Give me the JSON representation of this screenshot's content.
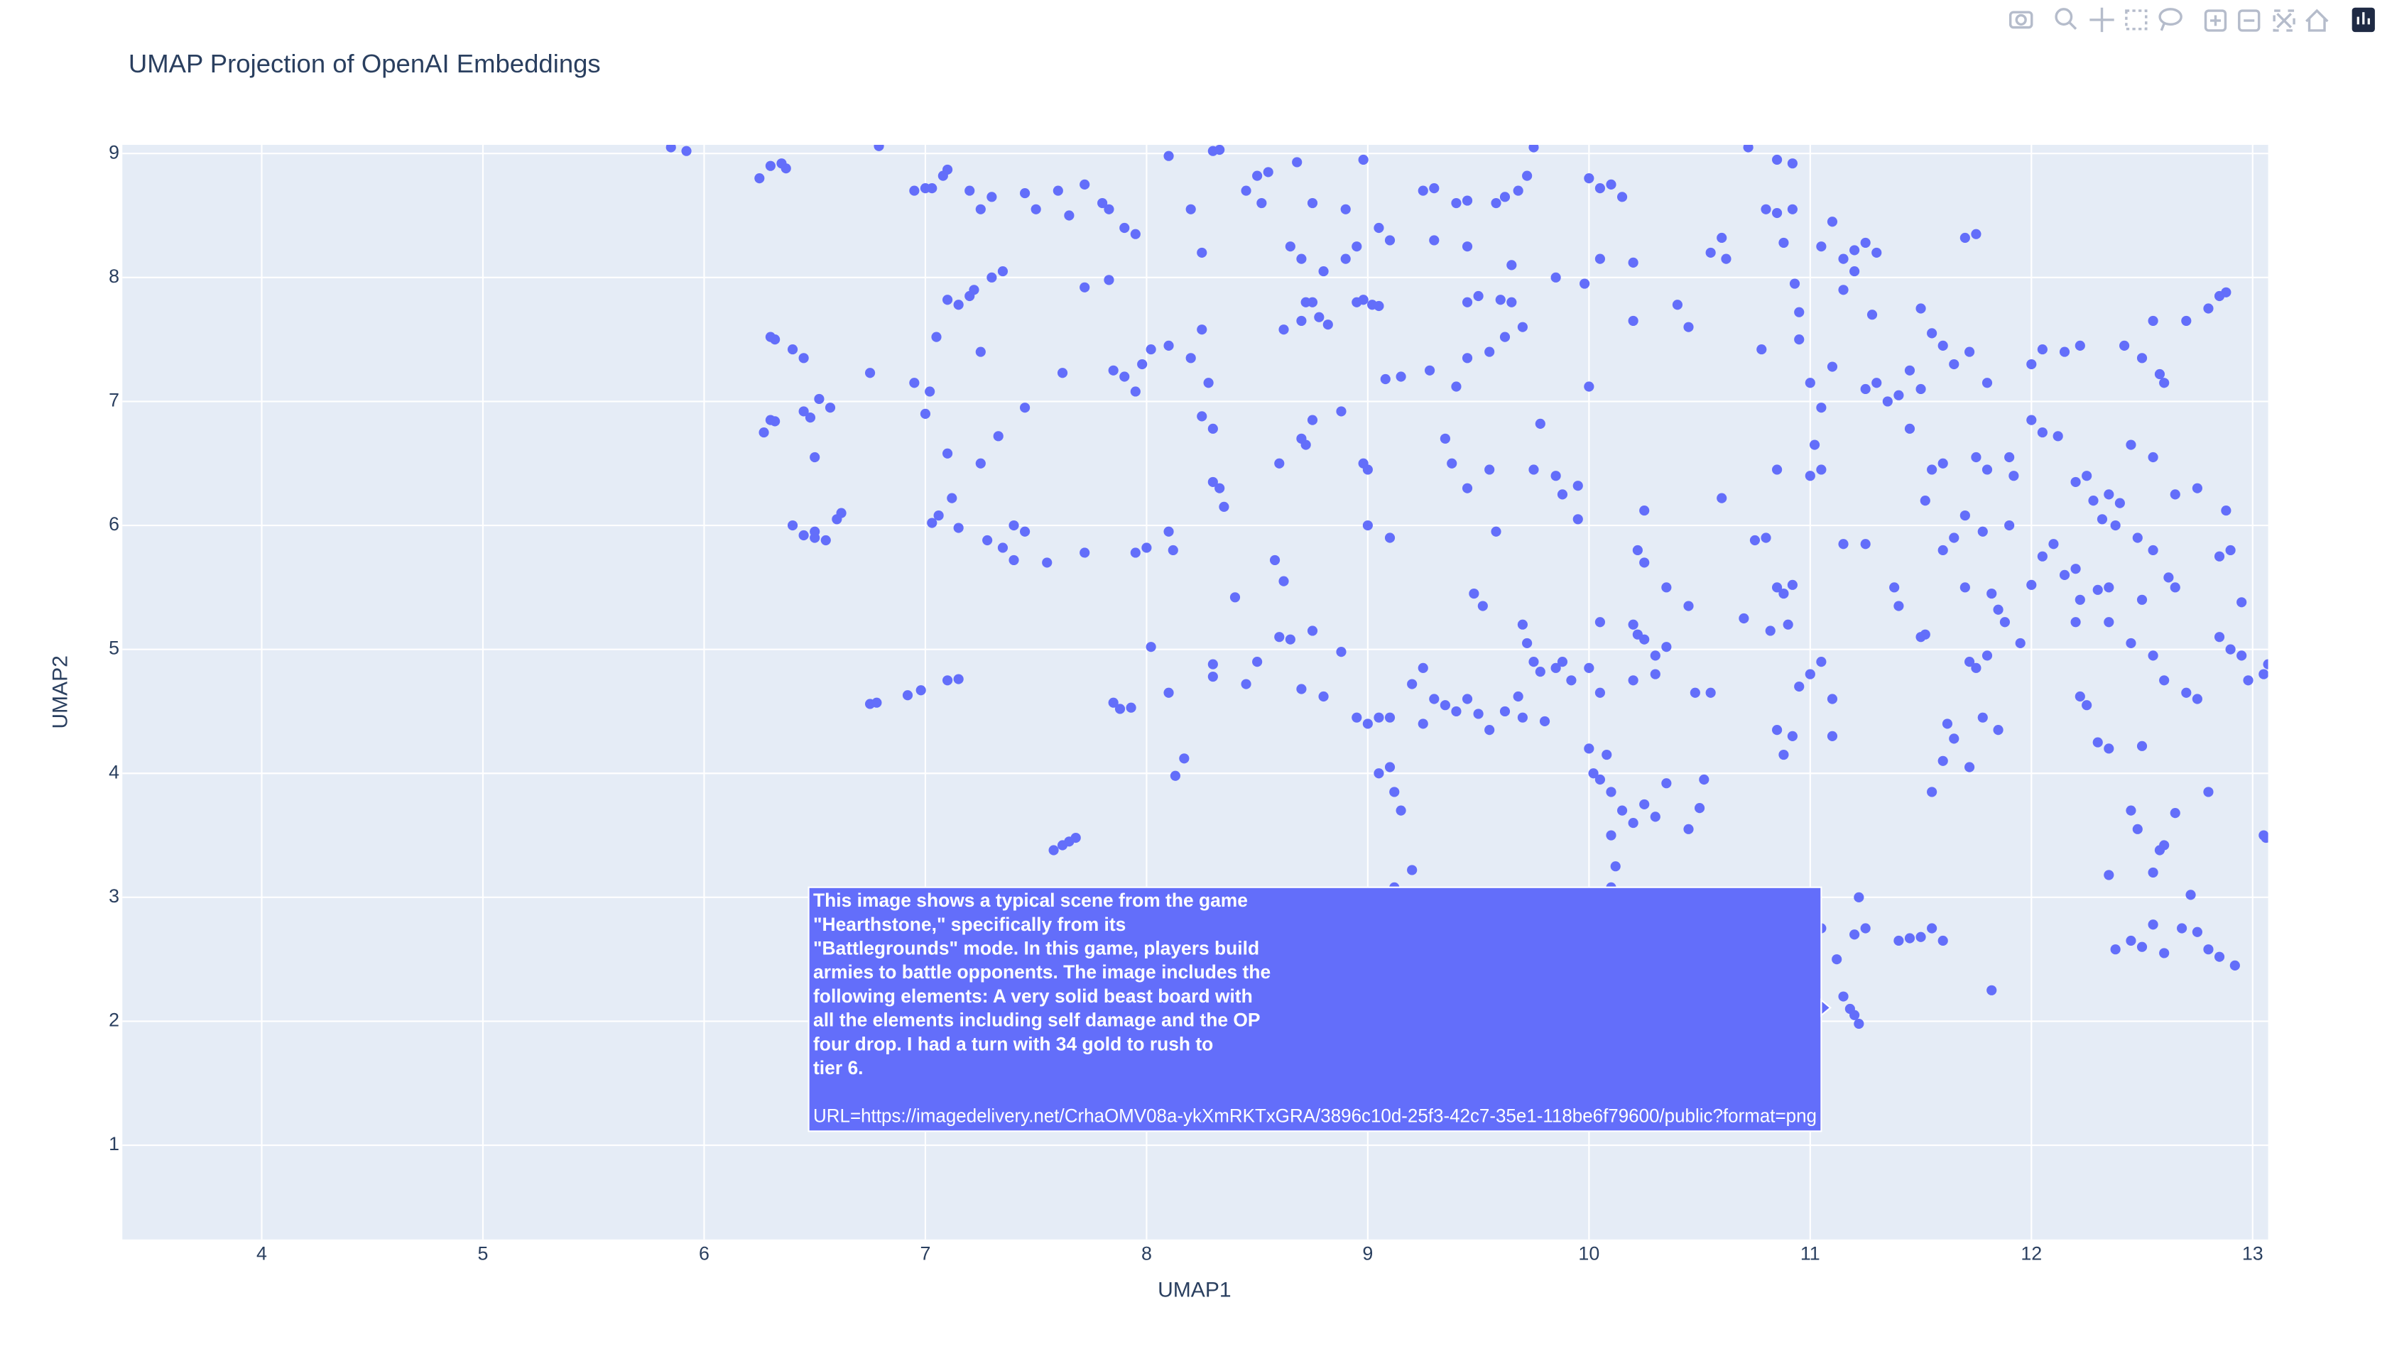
{
  "chart_data": {
    "type": "scatter",
    "title": "UMAP Projection of OpenAI Embeddings",
    "x_label": "UMAP1",
    "y_label": "UMAP2",
    "color": "#636efa",
    "grid": true,
    "xlim": [
      3.37,
      13.07
    ],
    "ylim": [
      0.24,
      9.07
    ],
    "xticks": [
      4,
      5,
      6,
      7,
      8,
      9,
      10,
      11,
      12,
      13
    ],
    "yticks": [
      1,
      2,
      3,
      4,
      5,
      6,
      7,
      8,
      9
    ],
    "x": [
      5.85,
      5.92,
      6.25,
      6.3,
      6.35,
      6.37,
      6.79,
      6.3,
      6.32,
      6.4,
      6.45,
      6.27,
      6.3,
      6.32,
      6.45,
      6.48,
      6.52,
      6.57,
      6.5,
      6.4,
      6.45,
      6.5,
      6.5,
      6.55,
      6.6,
      6.62,
      6.75,
      6.95,
      7.0,
      7.03,
      7.08,
      7.1,
      7.2,
      7.25,
      7.3,
      7.45,
      7.5,
      7.6,
      7.65,
      7.72,
      7.8,
      7.83,
      7.9,
      7.95,
      7.1,
      7.15,
      7.2,
      7.22,
      7.3,
      7.35,
      7.05,
      7.25,
      6.95,
      7.02,
      7.0,
      7.1,
      7.25,
      7.33,
      7.45,
      7.03,
      7.06,
      7.12,
      7.15,
      7.28,
      7.35,
      7.4,
      7.45,
      7.4,
      7.55,
      7.72,
      7.62,
      7.72,
      7.83,
      7.85,
      7.9,
      7.95,
      7.98,
      8.02,
      8.1,
      8.2,
      8.25,
      8.28,
      7.95,
      8.0,
      8.1,
      8.12,
      8.02,
      6.75,
      6.78,
      6.92,
      6.98,
      7.1,
      7.15,
      7.58,
      7.62,
      7.65,
      7.68,
      7.85,
      7.88,
      7.93,
      8.1,
      8.13,
      8.17,
      8.1,
      8.3,
      8.33,
      8.2,
      8.25,
      8.45,
      8.5,
      8.52,
      8.55,
      8.68,
      8.75,
      8.9,
      8.98,
      8.65,
      8.7,
      8.8,
      8.9,
      8.95,
      8.62,
      8.7,
      8.72,
      8.75,
      8.78,
      8.82,
      8.95,
      8.98,
      9.02,
      9.05,
      8.25,
      8.3,
      8.3,
      8.33,
      8.35,
      8.6,
      8.7,
      8.72,
      8.75,
      8.88,
      8.98,
      8.4,
      8.58,
      8.62,
      8.6,
      8.65,
      8.75,
      8.5,
      8.45,
      8.3,
      8.3,
      8.7,
      8.8,
      8.88,
      8.95,
      9.0,
      9.05,
      9.1,
      9.05,
      9.1,
      9.12,
      9.15,
      9.2,
      9.12,
      9.25,
      9.3,
      9.4,
      9.45,
      9.58,
      9.62,
      9.68,
      9.72,
      9.75,
      9.3,
      9.45,
      9.65,
      9.85,
      9.98,
      9.45,
      9.5,
      9.6,
      9.65,
      9.7,
      9.62,
      9.55,
      9.45,
      9.4,
      9.28,
      9.15,
      9.08,
      9.35,
      9.38,
      9.45,
      9.55,
      9.58,
      9.75,
      9.78,
      9.85,
      9.88,
      9.95,
      9.95,
      9.0,
      9.1,
      9.0,
      9.48,
      9.52,
      9.7,
      9.72,
      9.75,
      9.78,
      9.85,
      9.88,
      9.92,
      9.7,
      9.8,
      9.25,
      9.3,
      9.35,
      9.4,
      9.45,
      9.5,
      9.2,
      9.25,
      9.55,
      9.62,
      9.68,
      9.05,
      9.1,
      10.0,
      10.05,
      10.1,
      10.15,
      10.05,
      10.2,
      10.2,
      10.4,
      10.45,
      10.55,
      10.6,
      10.62,
      10.72,
      10.85,
      10.92,
      10.8,
      10.85,
      10.92,
      10.88,
      10.93,
      10.95,
      10.78,
      10.95,
      11.0,
      11.05,
      11.1,
      10.0,
      10.25,
      10.22,
      10.25,
      10.35,
      10.45,
      10.6,
      10.7,
      10.75,
      10.8,
      10.85,
      10.88,
      10.92,
      10.85,
      10.9,
      10.82,
      10.05,
      10.2,
      10.22,
      10.25,
      10.3,
      10.35,
      10.3,
      10.2,
      10.48,
      10.55,
      10.0,
      10.05,
      10.0,
      10.05,
      10.1,
      10.02,
      10.08,
      10.15,
      10.2,
      10.25,
      10.3,
      10.35,
      10.45,
      10.5,
      10.52,
      10.1,
      10.12,
      10.1,
      11.0,
      11.05,
      10.95,
      10.85,
      10.88,
      10.92,
      11.0,
      11.05,
      11.02,
      11.05,
      11.1,
      11.15,
      11.2,
      11.25,
      11.3,
      11.15,
      11.2,
      11.28,
      11.5,
      11.55,
      11.6,
      11.7,
      11.75,
      11.65,
      11.72,
      11.8,
      11.45,
      11.5,
      11.4,
      11.3,
      11.35,
      11.25,
      11.45,
      11.55,
      11.52,
      11.6,
      11.75,
      11.8,
      11.7,
      11.78,
      11.9,
      11.92,
      11.15,
      11.25,
      11.38,
      11.4,
      11.5,
      11.52,
      11.6,
      11.65,
      11.7,
      11.82,
      11.85,
      11.88,
      11.95,
      11.72,
      11.75,
      11.8,
      11.62,
      11.65,
      11.6,
      11.72,
      11.78,
      11.85,
      11.55,
      11.12,
      11.15,
      11.18,
      11.2,
      11.22,
      11.2,
      11.25,
      11.22,
      11.05,
      11.4,
      11.45,
      11.5,
      11.55,
      11.6,
      11.82,
      11.1,
      11.1,
      12.0,
      12.05,
      12.15,
      12.22,
      12.42,
      12.5,
      12.55,
      12.58,
      12.6,
      12.7,
      12.8,
      12.85,
      12.88,
      12.0,
      12.05,
      12.12,
      11.9,
      12.2,
      12.25,
      12.35,
      12.4,
      12.45,
      12.55,
      12.65,
      12.75,
      12.88,
      12.28,
      12.32,
      12.38,
      12.48,
      12.55,
      12.62,
      12.65,
      12.5,
      12.3,
      12.35,
      12.22,
      12.15,
      12.2,
      12.0,
      12.05,
      12.1,
      12.35,
      12.45,
      12.2,
      12.22,
      12.25,
      12.3,
      12.35,
      12.55,
      12.6,
      12.7,
      12.75,
      12.85,
      12.9,
      12.95,
      12.95,
      12.85,
      12.9,
      12.45,
      12.48,
      12.5,
      12.55,
      12.58,
      12.6,
      12.65,
      12.35,
      12.38,
      12.45,
      12.5,
      12.55,
      12.6,
      12.68,
      12.72,
      12.75,
      12.8,
      12.85,
      12.92,
      12.8,
      12.98,
      13.05,
      13.05,
      13.06,
      13.07
    ],
    "values": [
      9.05,
      9.02,
      8.8,
      8.9,
      8.92,
      8.88,
      9.06,
      7.52,
      7.5,
      7.42,
      7.35,
      6.75,
      6.85,
      6.84,
      6.92,
      6.87,
      7.02,
      6.95,
      6.55,
      6.0,
      5.92,
      5.9,
      5.95,
      5.88,
      6.05,
      6.1,
      7.23,
      8.7,
      8.72,
      8.72,
      8.82,
      8.87,
      8.7,
      8.55,
      8.65,
      8.68,
      8.55,
      8.7,
      8.5,
      8.75,
      8.6,
      8.55,
      8.4,
      8.35,
      7.82,
      7.78,
      7.85,
      7.9,
      8.0,
      8.05,
      7.52,
      7.4,
      7.15,
      7.08,
      6.9,
      6.58,
      6.5,
      6.72,
      6.95,
      6.02,
      6.08,
      6.22,
      5.98,
      5.88,
      5.82,
      6.0,
      5.95,
      5.72,
      5.7,
      5.78,
      7.23,
      7.92,
      7.98,
      7.25,
      7.2,
      7.08,
      7.3,
      7.42,
      7.45,
      7.35,
      7.58,
      7.15,
      5.78,
      5.82,
      5.95,
      5.8,
      5.02,
      4.56,
      4.57,
      4.63,
      4.67,
      4.75,
      4.76,
      3.38,
      3.42,
      3.45,
      3.48,
      4.57,
      4.52,
      4.53,
      4.65,
      3.98,
      4.12,
      8.98,
      9.02,
      9.03,
      8.55,
      8.2,
      8.7,
      8.82,
      8.6,
      8.85,
      8.93,
      8.6,
      8.55,
      8.95,
      8.25,
      8.15,
      8.05,
      8.15,
      8.25,
      7.58,
      7.65,
      7.8,
      7.8,
      7.68,
      7.62,
      7.8,
      7.82,
      7.78,
      7.77,
      6.88,
      6.78,
      6.35,
      6.3,
      6.15,
      6.5,
      6.7,
      6.65,
      6.85,
      6.92,
      6.5,
      5.42,
      5.72,
      5.55,
      5.1,
      5.08,
      5.15,
      4.9,
      4.72,
      4.88,
      4.78,
      4.68,
      4.62,
      4.98,
      4.45,
      4.4,
      4.45,
      4.45,
      4.0,
      4.05,
      3.85,
      3.7,
      3.22,
      3.08,
      8.7,
      8.72,
      8.6,
      8.62,
      8.6,
      8.65,
      8.7,
      8.82,
      9.05,
      8.3,
      8.25,
      8.1,
      8.0,
      7.95,
      7.8,
      7.85,
      7.82,
      7.8,
      7.6,
      7.52,
      7.4,
      7.35,
      7.12,
      7.25,
      7.2,
      7.18,
      6.7,
      6.5,
      6.3,
      6.45,
      5.95,
      6.45,
      6.82,
      6.4,
      6.25,
      6.32,
      6.05,
      6.0,
      5.9,
      6.45,
      5.45,
      5.35,
      5.2,
      5.05,
      4.9,
      4.82,
      4.85,
      4.9,
      4.75,
      4.45,
      4.42,
      4.85,
      4.6,
      4.55,
      4.5,
      4.6,
      4.48,
      4.72,
      4.4,
      4.35,
      4.5,
      4.62,
      8.4,
      8.3,
      8.8,
      8.72,
      8.75,
      8.65,
      8.15,
      8.12,
      7.65,
      7.78,
      7.6,
      8.2,
      8.32,
      8.15,
      9.05,
      8.95,
      8.92,
      8.55,
      8.52,
      8.55,
      8.28,
      7.95,
      7.72,
      7.42,
      7.5,
      7.15,
      6.95,
      7.28,
      7.12,
      6.12,
      5.8,
      5.7,
      5.5,
      5.35,
      6.22,
      5.25,
      5.88,
      5.9,
      5.5,
      5.45,
      5.52,
      6.45,
      5.2,
      5.15,
      5.22,
      5.2,
      5.12,
      5.08,
      4.95,
      5.02,
      4.8,
      4.75,
      4.65,
      4.65,
      4.85,
      4.65,
      4.2,
      3.95,
      3.85,
      4.0,
      4.15,
      3.7,
      3.6,
      3.75,
      3.65,
      3.92,
      3.55,
      3.72,
      3.95,
      3.5,
      3.25,
      3.08,
      4.8,
      4.9,
      4.7,
      4.35,
      4.15,
      4.3,
      6.4,
      6.45,
      6.65,
      8.25,
      8.45,
      8.15,
      8.22,
      8.28,
      8.2,
      7.9,
      8.05,
      7.7,
      7.75,
      7.55,
      7.45,
      8.32,
      8.35,
      7.3,
      7.4,
      7.15,
      7.25,
      7.1,
      7.05,
      7.15,
      7.0,
      7.1,
      6.78,
      6.45,
      6.2,
      6.5,
      6.55,
      6.45,
      6.08,
      5.95,
      6.0,
      6.4,
      5.85,
      5.85,
      5.5,
      5.35,
      5.1,
      5.12,
      5.8,
      5.9,
      5.5,
      5.45,
      5.32,
      5.22,
      5.05,
      4.9,
      4.85,
      4.95,
      4.4,
      4.28,
      4.1,
      4.05,
      4.45,
      4.35,
      3.85,
      2.5,
      2.2,
      2.1,
      2.05,
      1.98,
      2.7,
      2.75,
      3.0,
      2.75,
      2.65,
      2.67,
      2.68,
      2.75,
      2.65,
      2.25,
      4.3,
      4.6,
      7.3,
      7.42,
      7.4,
      7.45,
      7.45,
      7.35,
      7.65,
      7.22,
      7.15,
      7.65,
      7.75,
      7.85,
      7.88,
      6.85,
      6.75,
      6.72,
      6.55,
      6.35,
      6.4,
      6.25,
      6.18,
      6.65,
      6.55,
      6.25,
      6.3,
      6.12,
      6.2,
      6.05,
      6.0,
      5.9,
      5.8,
      5.58,
      5.5,
      5.4,
      5.48,
      5.5,
      5.4,
      5.6,
      5.65,
      5.52,
      5.75,
      5.85,
      5.22,
      5.05,
      5.22,
      4.62,
      4.55,
      4.25,
      4.2,
      4.95,
      4.75,
      4.65,
      4.6,
      5.1,
      5.0,
      4.95,
      5.38,
      5.75,
      5.8,
      3.7,
      3.55,
      4.22,
      3.2,
      3.38,
      3.42,
      3.68,
      3.18,
      2.58,
      2.65,
      2.6,
      2.78,
      2.55,
      2.75,
      3.02,
      2.72,
      2.58,
      2.52,
      2.45,
      3.85,
      4.75,
      4.8,
      3.5,
      3.48,
      4.88
    ],
    "tooltip": {
      "lines": [
        "This image shows a typical scene from the game",
        "\"Hearthstone,\" specifically from its",
        "\"Battlegrounds\" mode. In this game, players build",
        "armies to battle opponents. The image includes the",
        "following elements: A very solid beast board with",
        "all the elements including self damage and the OP",
        "four drop. I had a turn with 34 gold to rush to",
        "tier 6."
      ],
      "url": "URL=https://imagedelivery.net/CrhaOMV08a-ykXmRKTxGRA/3896c10d-25f3-42c7-35e1-118be6f79600/public?format=png"
    }
  }
}
